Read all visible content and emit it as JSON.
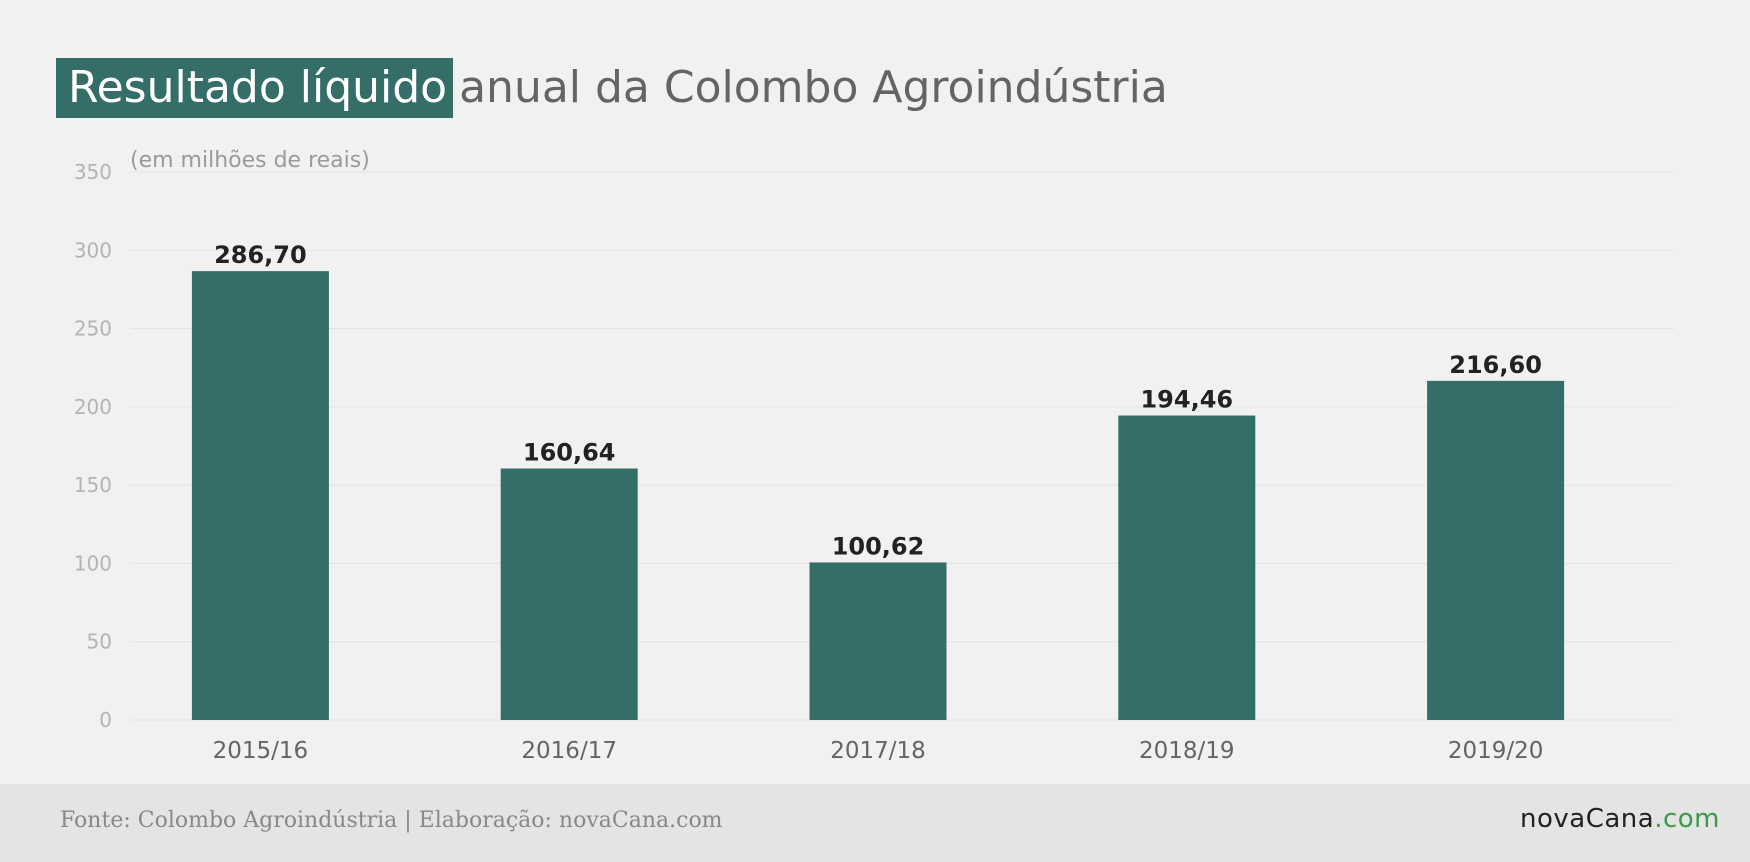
{
  "title": {
    "highlight": "Resultado líquido",
    "rest": "anual da Colombo Agroindústria"
  },
  "footer": {
    "source": "Fonte: Colombo Agroindústria | Elaboração: novaCana.com",
    "logo_main": "novaCana",
    "logo_tld": ".com"
  },
  "colors": {
    "bar": "#356e69",
    "background": "#f1f1f1",
    "grid": "#e2e2e2",
    "logo_accent": "#3a9a48"
  },
  "chart_data": {
    "type": "bar",
    "subtitle": "(em milhões de reais)",
    "categories": [
      "2015/16",
      "2016/17",
      "2017/18",
      "2018/19",
      "2019/20"
    ],
    "values": [
      286.7,
      160.64,
      100.62,
      194.46,
      216.6
    ],
    "value_labels": [
      "286,70",
      "160,64",
      "100,62",
      "194,46",
      "216,60"
    ],
    "ylim": [
      0,
      350
    ],
    "yticks": [
      0,
      50,
      100,
      150,
      200,
      250,
      300,
      350
    ],
    "grid": true,
    "legend": "none",
    "xlabel": "",
    "ylabel": ""
  }
}
